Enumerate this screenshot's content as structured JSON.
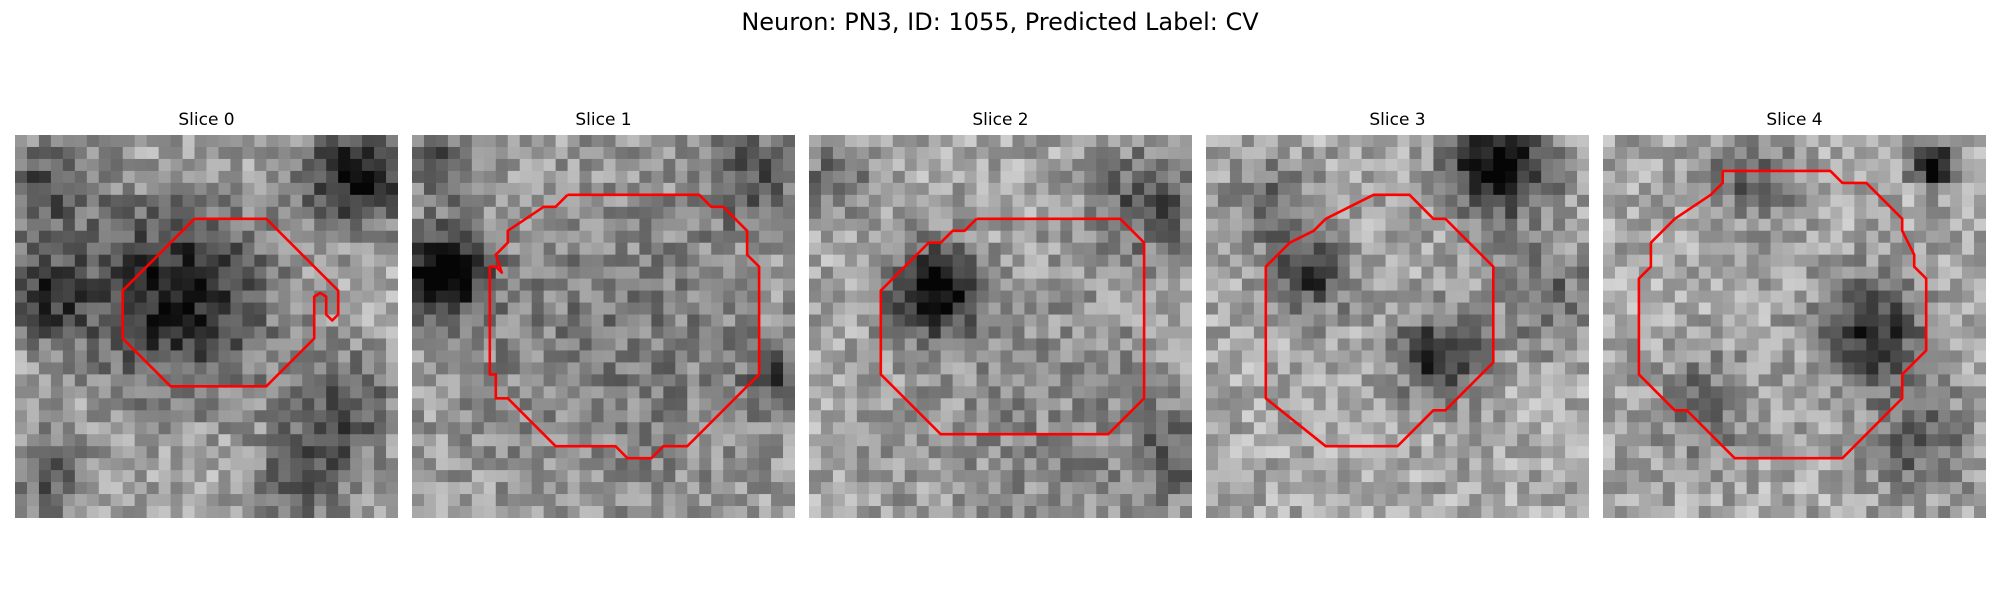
{
  "figure": {
    "title": "Neuron: PN3, ID: 1055, Predicted Label: CV"
  },
  "style": {
    "contour_color": "#ff0000",
    "colormap": "grayscale"
  },
  "panels": [
    {
      "title": "Slice 0"
    },
    {
      "title": "Slice 1"
    },
    {
      "title": "Slice 2"
    },
    {
      "title": "Slice 3"
    },
    {
      "title": "Slice 4"
    }
  ]
}
